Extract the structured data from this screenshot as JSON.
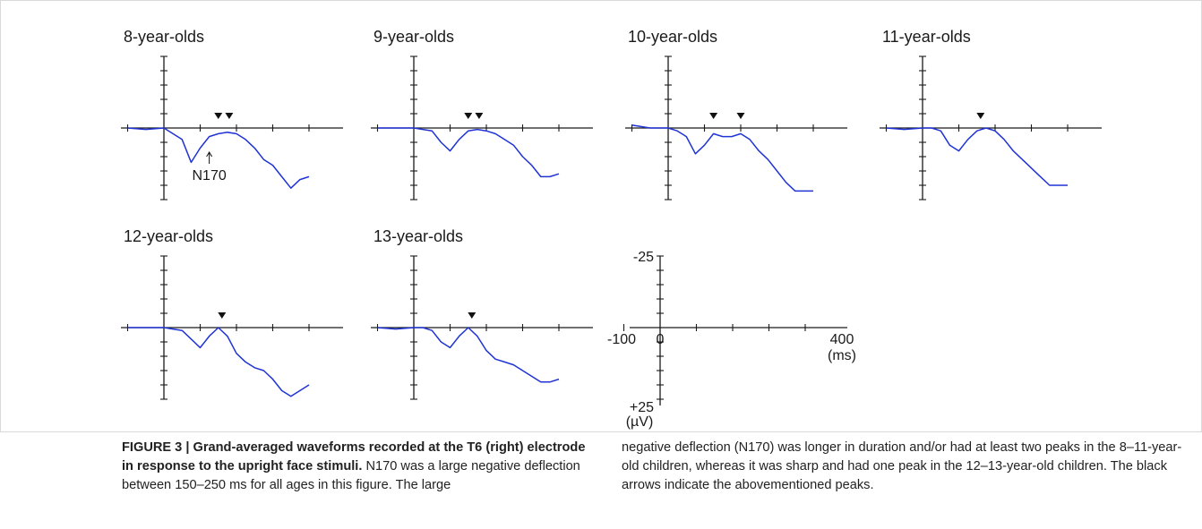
{
  "figure": {
    "panels": [
      {
        "title": "8-year-olds",
        "peaks_ms": [
          150,
          180
        ],
        "annotation": "N170"
      },
      {
        "title": "9-year-olds",
        "peaks_ms": [
          150,
          180
        ]
      },
      {
        "title": "10-year-olds",
        "peaks_ms": [
          125,
          200
        ]
      },
      {
        "title": "11-year-olds",
        "peaks_ms": [
          160
        ]
      },
      {
        "title": "12-year-olds",
        "peaks_ms": [
          160
        ]
      },
      {
        "title": "13-year-olds",
        "peaks_ms": [
          160
        ]
      }
    ],
    "scale_panel": {
      "y_top_label": "-25",
      "y_bottom_label": "+25",
      "y_unit": "(µV)",
      "x_start_label": "-100",
      "x_zero_label": "0",
      "x_end_label": "400",
      "x_unit": "(ms)"
    },
    "line_color": "#1f33d6",
    "axis_color": "#1a1a1a"
  },
  "chart_data": {
    "type": "line",
    "x_unit": "ms",
    "y_unit": "µV",
    "xlim": [
      -100,
      400
    ],
    "ylim": [
      -25,
      25
    ],
    "y_axis_inverted": true,
    "x": [
      -100,
      -50,
      0,
      25,
      50,
      75,
      100,
      125,
      150,
      175,
      200,
      225,
      250,
      275,
      300,
      325,
      350,
      375,
      400
    ],
    "series": [
      {
        "name": "8-year-olds",
        "values": [
          0,
          0.5,
          0,
          2,
          4,
          12,
          7,
          3,
          2,
          1.5,
          2,
          4,
          7,
          11,
          13,
          17,
          21,
          18,
          17
        ]
      },
      {
        "name": "9-year-olds",
        "values": [
          0,
          0,
          0,
          0.5,
          1,
          5,
          8,
          4,
          1,
          0.5,
          1,
          2,
          4,
          6,
          10,
          13,
          17,
          17,
          16
        ]
      },
      {
        "name": "10-year-olds",
        "values": [
          -1,
          0,
          0,
          1,
          3,
          9,
          6,
          2,
          3,
          3,
          2,
          4,
          8,
          11,
          15,
          19,
          22,
          22,
          22
        ]
      },
      {
        "name": "11-year-olds",
        "values": [
          0,
          0.5,
          0,
          0,
          1,
          6,
          8,
          4,
          1,
          0,
          1,
          4,
          8,
          11,
          14,
          17,
          20,
          20,
          20
        ]
      },
      {
        "name": "12-year-olds",
        "values": [
          0,
          0,
          0,
          0.5,
          1,
          4,
          7,
          3,
          0,
          3,
          9,
          12,
          14,
          15,
          18,
          22,
          24,
          22,
          20
        ]
      },
      {
        "name": "13-year-olds",
        "values": [
          0,
          0.5,
          0,
          0,
          1,
          5,
          7,
          3,
          0,
          3,
          8,
          11,
          12,
          13,
          15,
          17,
          19,
          19,
          18
        ]
      }
    ]
  },
  "caption": {
    "label": "FIGURE 3 | Grand-averaged waveforms recorded at the T6 (right) electrode in response to the upright face stimuli.",
    "text_1": "N170 was a large negative deflection between 150–250 ms for all ages in this figure. The large",
    "text_2": "negative deflection (N170) was longer in duration and/or had at least two peaks in the 8–11-year-old children, whereas it was sharp and had one peak in the 12–13-year-old children. The black arrows indicate the abovementioned peaks."
  }
}
